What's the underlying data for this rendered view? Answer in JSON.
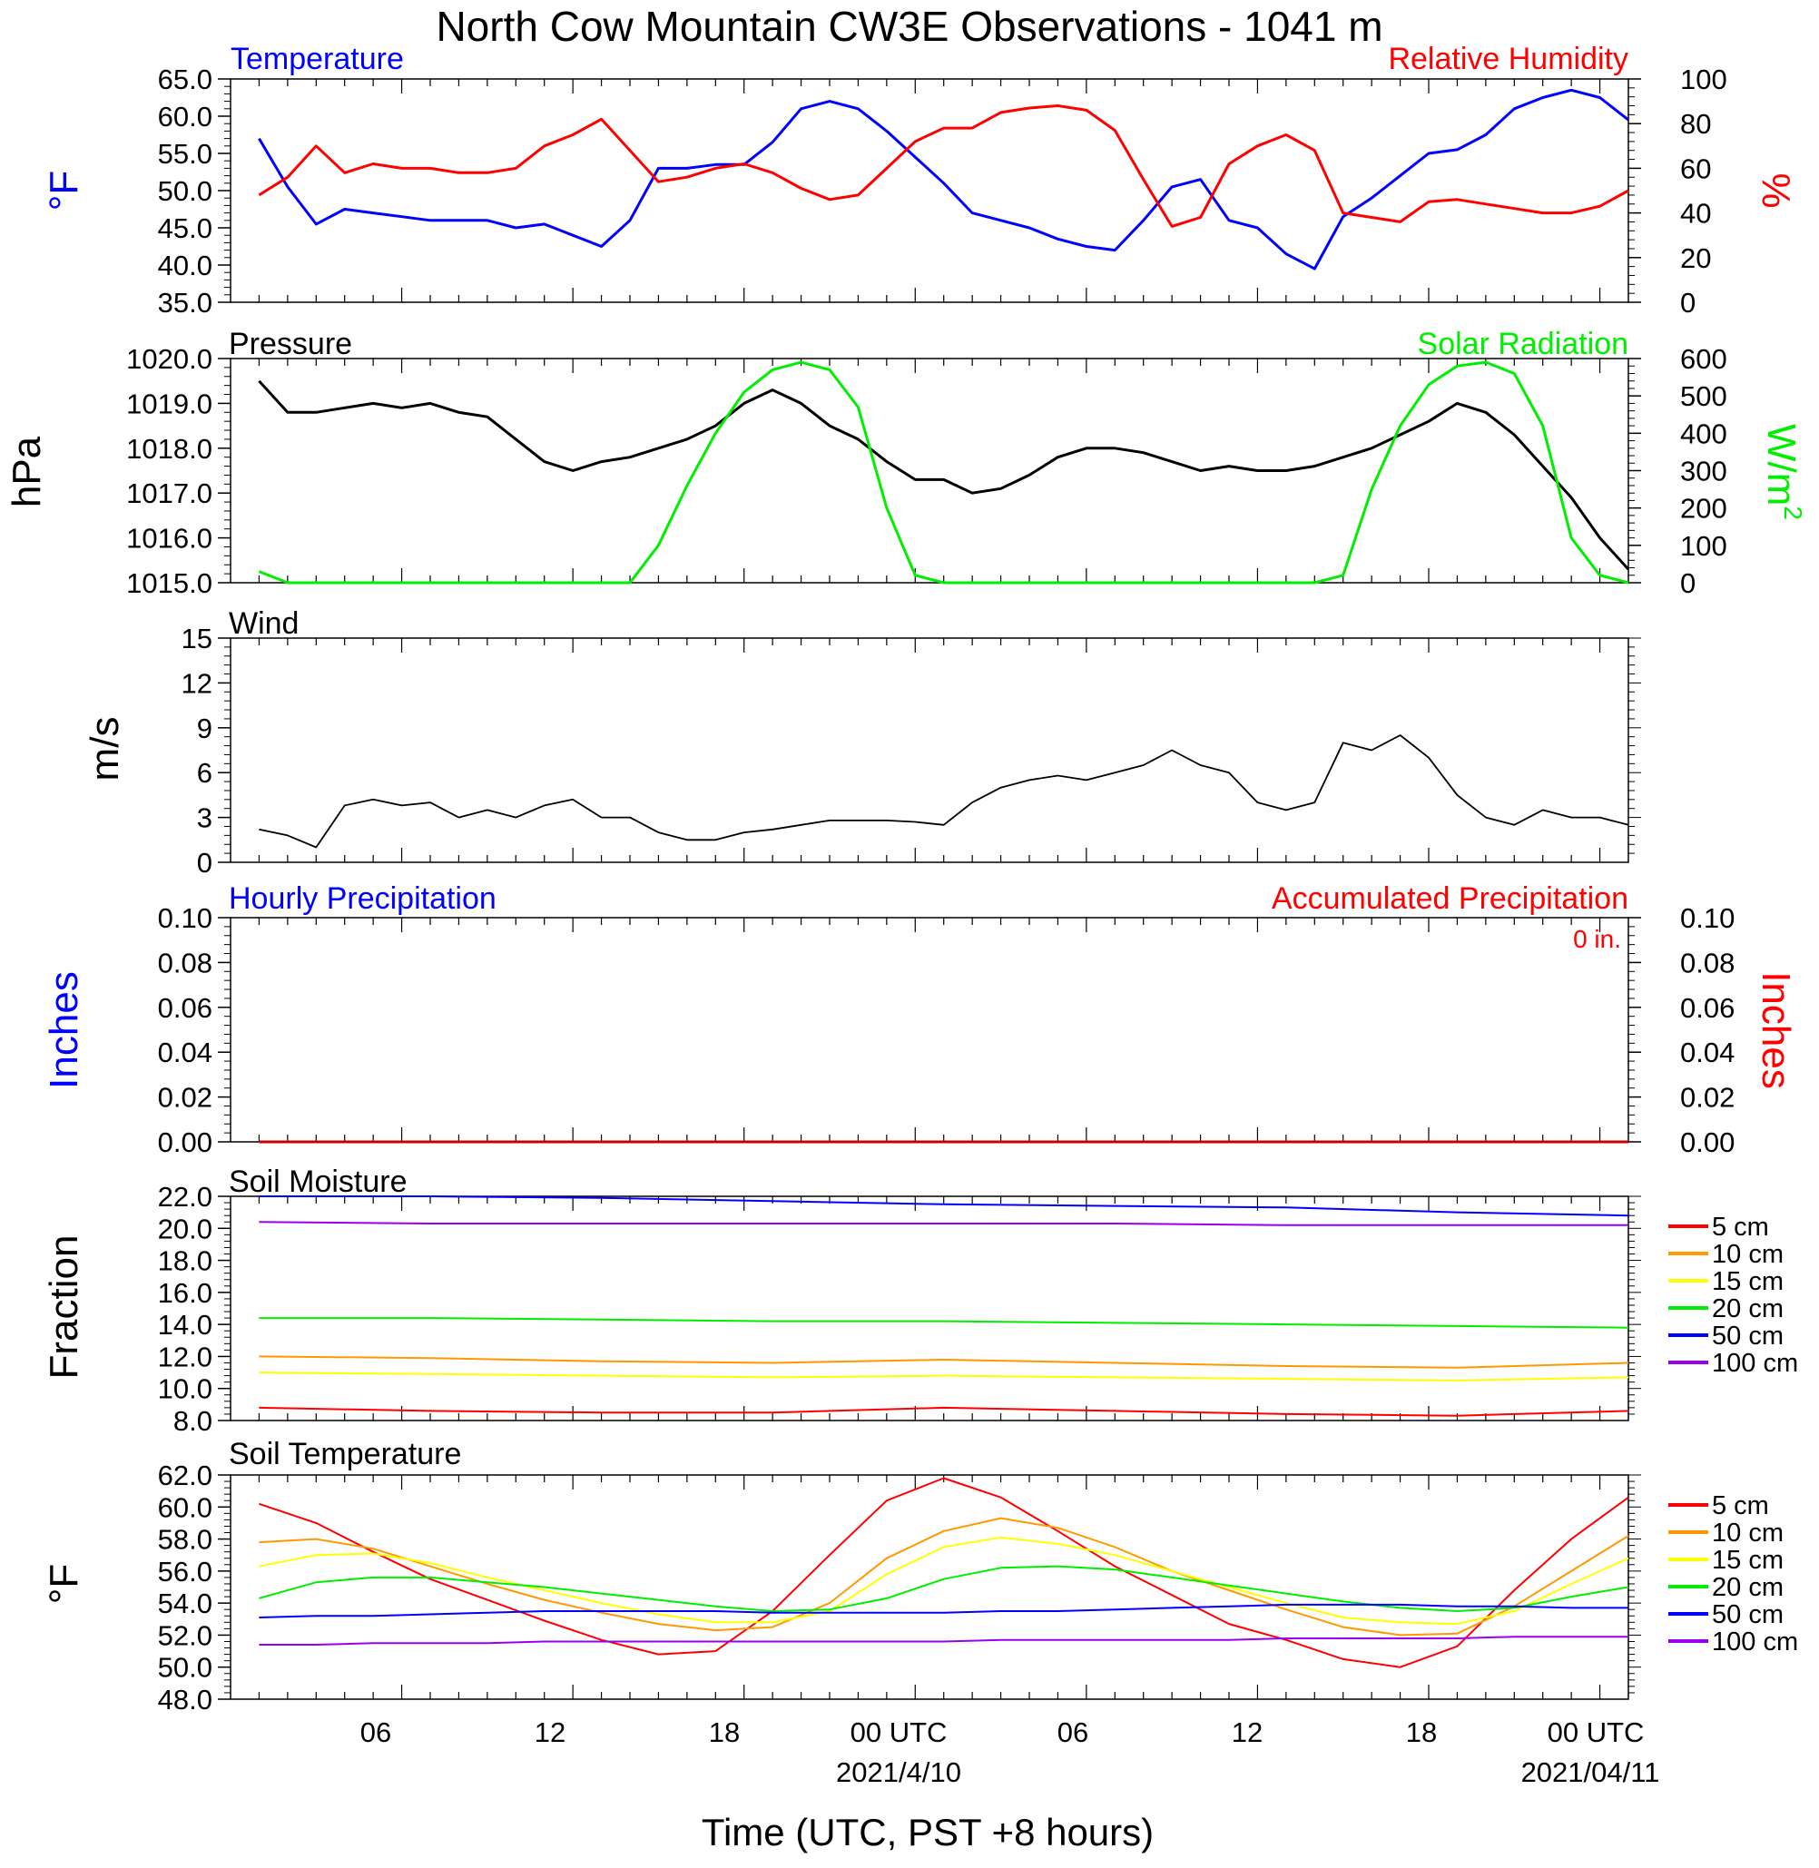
{
  "figure": {
    "title": "North Cow Mountain CW3E Observations - 1041 m",
    "xlabel": "Time (UTC, PST +8 hours)",
    "x_ticks": [
      "06",
      "12",
      "18",
      "00 UTC",
      "06",
      "12",
      "18",
      "00 UTC"
    ],
    "x_dates": [
      "2021/4/10",
      "2021/04/11"
    ]
  },
  "chart_data": [
    {
      "type": "line",
      "left_title": "Temperature",
      "right_title": "Relative Humidity",
      "ylabel_left": "°F",
      "ylabel_right": "%",
      "ylim": [
        35,
        65
      ],
      "ylim_right": [
        0,
        100
      ],
      "y_ticks": [
        "65.0",
        "60.0",
        "55.0",
        "50.0",
        "45.0",
        "40.0",
        "35.0"
      ],
      "y_ticks_right": [
        "100",
        "80",
        "60",
        "40",
        "20",
        "0"
      ],
      "x_hours": [
        1,
        2,
        3,
        4,
        5,
        6,
        7,
        8,
        9,
        10,
        11,
        12,
        13,
        14,
        15,
        16,
        17,
        18,
        19,
        20,
        21,
        22,
        23,
        24,
        25,
        26,
        27,
        28,
        29,
        30,
        31,
        32,
        33,
        34,
        35,
        36,
        37,
        38,
        39,
        40,
        41,
        42,
        43,
        44,
        45,
        46,
        47,
        48,
        49
      ],
      "series": [
        {
          "name": "Temperature",
          "axis": "left",
          "color": "#0000ff",
          "values": [
            57.0,
            50.5,
            45.5,
            47.5,
            47.0,
            46.5,
            46.0,
            46.0,
            46.0,
            45.0,
            45.5,
            44.0,
            42.5,
            46.0,
            53.0,
            53.0,
            53.5,
            53.5,
            56.5,
            61.0,
            62.0,
            61.0,
            58.0,
            54.5,
            51.0,
            47.0,
            46.0,
            45.0,
            43.5,
            42.5,
            42.0,
            46.0,
            50.5,
            51.5,
            46.0,
            45.0,
            41.5,
            39.5,
            46.5,
            49.0,
            52.0,
            55.0,
            55.5,
            57.5,
            61.0,
            62.5,
            63.5,
            62.5,
            59.5
          ]
        },
        {
          "name": "Relative Humidity",
          "axis": "right",
          "color": "#ff0000",
          "values": [
            48,
            56,
            70,
            58,
            62,
            60,
            60,
            58,
            58,
            60,
            70,
            75,
            82,
            68,
            54,
            56,
            60,
            62,
            58,
            51,
            46,
            48,
            60,
            72,
            78,
            78,
            85,
            87,
            88,
            86,
            77,
            55,
            34,
            38,
            62,
            70,
            75,
            68,
            40,
            38,
            36,
            45,
            46,
            44,
            42,
            40,
            40,
            43,
            50
          ]
        }
      ]
    },
    {
      "type": "line",
      "left_title": "Pressure",
      "right_title": "Solar Radiation",
      "ylabel_left": "hPa",
      "ylabel_right": "W/m",
      "ylabel_right_sup": "2",
      "ylim": [
        1015,
        1020
      ],
      "ylim_right": [
        0,
        600
      ],
      "y_ticks": [
        "1020.0",
        "1019.0",
        "1018.0",
        "1017.0",
        "1016.0",
        "1015.0"
      ],
      "y_ticks_right": [
        "600",
        "500",
        "400",
        "300",
        "200",
        "100",
        "0"
      ],
      "x_hours": [
        1,
        2,
        3,
        4,
        5,
        6,
        7,
        8,
        9,
        10,
        11,
        12,
        13,
        14,
        15,
        16,
        17,
        18,
        19,
        20,
        21,
        22,
        23,
        24,
        25,
        26,
        27,
        28,
        29,
        30,
        31,
        32,
        33,
        34,
        35,
        36,
        37,
        38,
        39,
        40,
        41,
        42,
        43,
        44,
        45,
        46,
        47,
        48,
        49
      ],
      "series": [
        {
          "name": "Pressure",
          "axis": "left",
          "color": "#000000",
          "values": [
            1019.5,
            1018.8,
            1018.8,
            1018.9,
            1019.0,
            1018.9,
            1019.0,
            1018.8,
            1018.7,
            1018.2,
            1017.7,
            1017.5,
            1017.7,
            1017.8,
            1018.0,
            1018.2,
            1018.5,
            1019.0,
            1019.3,
            1019.0,
            1018.5,
            1018.2,
            1017.7,
            1017.3,
            1017.3,
            1017.0,
            1017.1,
            1017.4,
            1017.8,
            1018.0,
            1018.0,
            1017.9,
            1017.7,
            1017.5,
            1017.6,
            1017.5,
            1017.5,
            1017.6,
            1017.8,
            1018.0,
            1018.3,
            1018.6,
            1019.0,
            1018.8,
            1018.3,
            1017.6,
            1016.9,
            1016.0,
            1015.3
          ]
        },
        {
          "name": "Solar Radiation",
          "axis": "right",
          "color": "#00ee00",
          "values": [
            30,
            0,
            0,
            0,
            0,
            0,
            0,
            0,
            0,
            0,
            0,
            0,
            0,
            0,
            100,
            260,
            400,
            510,
            570,
            590,
            570,
            470,
            200,
            20,
            0,
            0,
            0,
            0,
            0,
            0,
            0,
            0,
            0,
            0,
            0,
            0,
            0,
            0,
            20,
            250,
            420,
            530,
            580,
            590,
            560,
            420,
            120,
            20,
            0
          ]
        }
      ]
    },
    {
      "type": "line",
      "left_title": "Wind",
      "ylabel_left": "m/s",
      "ylim": [
        0,
        15
      ],
      "y_ticks": [
        "15",
        "12",
        "9",
        "6",
        "3",
        "0"
      ],
      "x_hours": [
        1,
        2,
        3,
        4,
        5,
        6,
        7,
        8,
        9,
        10,
        11,
        12,
        13,
        14,
        15,
        16,
        17,
        18,
        19,
        20,
        21,
        22,
        23,
        24,
        25,
        26,
        27,
        28,
        29,
        30,
        31,
        32,
        33,
        34,
        35,
        36,
        37,
        38,
        39,
        40,
        41,
        42,
        43,
        44,
        45,
        46,
        47,
        48,
        49
      ],
      "series": [
        {
          "name": "Wind Speed",
          "color": "#000000",
          "values": [
            2.2,
            1.8,
            1.0,
            3.8,
            4.2,
            3.8,
            4.0,
            3.0,
            3.5,
            3.0,
            3.8,
            4.2,
            3.0,
            3.0,
            2.0,
            1.5,
            1.5,
            2.0,
            2.2,
            2.5,
            2.8,
            2.8,
            2.8,
            2.7,
            2.5,
            4.0,
            5.0,
            5.5,
            5.8,
            5.5,
            6.0,
            6.5,
            7.5,
            6.5,
            6.0,
            4.0,
            3.5,
            4.0,
            8.0,
            7.5,
            8.5,
            7.0,
            4.5,
            3.0,
            2.5,
            3.5,
            3.0,
            3.0,
            2.5
          ]
        }
      ]
    },
    {
      "type": "line",
      "left_title": "Hourly Precipitation",
      "right_title": "Accumulated Precipitation",
      "annotation": "0 in.",
      "ylabel_left": "Inches",
      "ylabel_right": "Inches",
      "ylim": [
        0,
        0.1
      ],
      "y_ticks": [
        "0.10",
        "0.08",
        "0.06",
        "0.04",
        "0.02",
        "0.00"
      ],
      "y_ticks_right": [
        "0.10",
        "0.08",
        "0.06",
        "0.04",
        "0.02",
        "0.00"
      ],
      "x_hours": [
        1,
        49
      ],
      "series": [
        {
          "name": "Accumulated Precipitation",
          "color": "#cc0000",
          "values": [
            0,
            0
          ]
        }
      ]
    },
    {
      "type": "line",
      "left_title": "Soil Moisture",
      "ylabel_left": "Fraction",
      "ylim": [
        8,
        22
      ],
      "y_ticks": [
        "22.0",
        "20.0",
        "18.0",
        "16.0",
        "14.0",
        "12.0",
        "10.0",
        "8.0"
      ],
      "x_hours": [
        1,
        7,
        13,
        19,
        25,
        31,
        37,
        43,
        49
      ],
      "legend": "right",
      "series": [
        {
          "name": "5 cm",
          "color": "#ff0000",
          "values": [
            8.8,
            8.6,
            8.5,
            8.5,
            8.8,
            8.6,
            8.4,
            8.3,
            8.6
          ]
        },
        {
          "name": "10 cm",
          "color": "#ff9900",
          "values": [
            12.0,
            11.9,
            11.7,
            11.6,
            11.8,
            11.6,
            11.4,
            11.3,
            11.6
          ]
        },
        {
          "name": "15 cm",
          "color": "#ffff00",
          "values": [
            11.0,
            10.9,
            10.8,
            10.7,
            10.8,
            10.7,
            10.6,
            10.5,
            10.7
          ]
        },
        {
          "name": "20 cm",
          "color": "#00ee00",
          "values": [
            14.4,
            14.4,
            14.3,
            14.2,
            14.2,
            14.1,
            14.0,
            13.9,
            13.8
          ]
        },
        {
          "name": "50 cm",
          "color": "#0000ff",
          "values": [
            22.0,
            22.0,
            21.9,
            21.7,
            21.5,
            21.4,
            21.3,
            21.0,
            20.8
          ]
        },
        {
          "name": "100 cm",
          "color": "#9900ee",
          "values": [
            20.4,
            20.3,
            20.3,
            20.3,
            20.3,
            20.3,
            20.2,
            20.2,
            20.2
          ]
        }
      ]
    },
    {
      "type": "line",
      "left_title": "Soil Temperature",
      "ylabel_left": "°F",
      "ylim": [
        48,
        62
      ],
      "y_ticks": [
        "62.0",
        "60.0",
        "58.0",
        "56.0",
        "54.0",
        "52.0",
        "50.0",
        "48.0"
      ],
      "x_hours": [
        1,
        3,
        5,
        7,
        9,
        11,
        13,
        15,
        17,
        19,
        21,
        23,
        25,
        27,
        29,
        31,
        33,
        35,
        37,
        39,
        41,
        43,
        45,
        47,
        49
      ],
      "legend": "right",
      "series": [
        {
          "name": "5 cm",
          "color": "#ff0000",
          "values": [
            60.2,
            59.0,
            57.2,
            55.5,
            54.2,
            52.9,
            51.7,
            50.8,
            51.0,
            53.5,
            57.0,
            60.4,
            61.8,
            60.6,
            58.5,
            56.3,
            54.5,
            52.7,
            51.7,
            50.5,
            50.0,
            51.3,
            54.8,
            58.0,
            60.6
          ]
        },
        {
          "name": "10 cm",
          "color": "#ff9900",
          "values": [
            57.8,
            58.0,
            57.4,
            56.3,
            55.2,
            54.2,
            53.4,
            52.7,
            52.3,
            52.5,
            54.0,
            56.8,
            58.5,
            59.3,
            58.7,
            57.5,
            56.0,
            54.8,
            53.6,
            52.5,
            52.0,
            52.1,
            53.8,
            56.0,
            58.2
          ]
        },
        {
          "name": "15 cm",
          "color": "#ffff00",
          "values": [
            56.3,
            57.0,
            57.1,
            56.5,
            55.6,
            54.8,
            54.0,
            53.3,
            52.8,
            52.8,
            53.5,
            55.8,
            57.5,
            58.1,
            57.7,
            57.0,
            56.0,
            55.0,
            54.0,
            53.1,
            52.8,
            52.7,
            53.5,
            55.2,
            56.8
          ]
        },
        {
          "name": "20 cm",
          "color": "#00ee00",
          "values": [
            54.3,
            55.3,
            55.6,
            55.6,
            55.3,
            55.0,
            54.6,
            54.2,
            53.8,
            53.5,
            53.6,
            54.3,
            55.5,
            56.2,
            56.3,
            56.1,
            55.6,
            55.1,
            54.6,
            54.1,
            53.7,
            53.5,
            53.7,
            54.4,
            55.0
          ]
        },
        {
          "name": "50 cm",
          "color": "#0000ff",
          "values": [
            53.1,
            53.2,
            53.2,
            53.3,
            53.4,
            53.5,
            53.5,
            53.5,
            53.5,
            53.4,
            53.4,
            53.4,
            53.4,
            53.5,
            53.5,
            53.6,
            53.7,
            53.8,
            53.9,
            53.9,
            53.9,
            53.8,
            53.8,
            53.7,
            53.7
          ]
        },
        {
          "name": "100 cm",
          "color": "#9900ee",
          "values": [
            51.4,
            51.4,
            51.5,
            51.5,
            51.5,
            51.6,
            51.6,
            51.6,
            51.6,
            51.6,
            51.6,
            51.6,
            51.6,
            51.7,
            51.7,
            51.7,
            51.7,
            51.7,
            51.8,
            51.8,
            51.8,
            51.8,
            51.9,
            51.9,
            51.9
          ]
        }
      ]
    }
  ]
}
